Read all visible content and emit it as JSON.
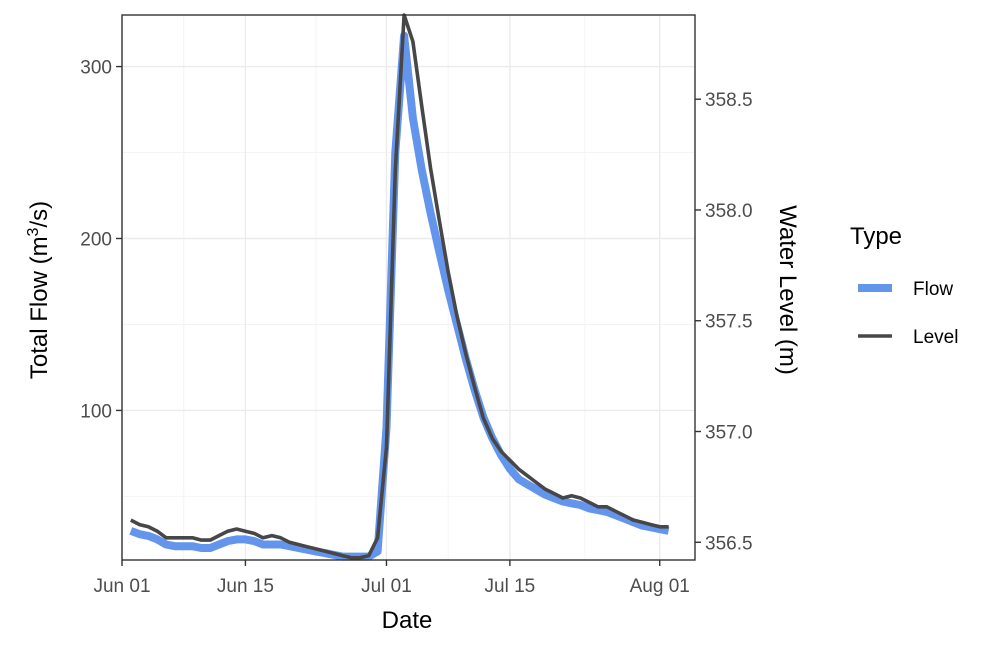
{
  "chart_data": {
    "type": "line",
    "xlabel": "Date",
    "ylabel_left": "Total Flow (m",
    "ylabel_left_sup": "3",
    "ylabel_left_tail": "/s)",
    "ylabel_right": "Water Level (m)",
    "grid": true,
    "legend": {
      "title": "Type",
      "placement": "right"
    },
    "x_ticks": [
      {
        "label": "Jun 01",
        "day": 0
      },
      {
        "label": "Jun 15",
        "day": 14
      },
      {
        "label": "Jul 01",
        "day": 30
      },
      {
        "label": "Jul 15",
        "day": 44
      },
      {
        "label": "Aug 01",
        "day": 61
      }
    ],
    "y_left_ticks": [
      100,
      200,
      300
    ],
    "y_right_ticks": [
      "356.5",
      "357.0",
      "357.5",
      "358.0",
      "358.5"
    ],
    "x_range": [
      "2023-05-31",
      "2023-08-04"
    ],
    "ylim_left": [
      13,
      330
    ],
    "ylim_right": [
      356.42,
      358.88
    ],
    "series": [
      {
        "name": "Flow",
        "axis": "left",
        "color": "#6495ed",
        "points": [
          [
            "06-01",
            30
          ],
          [
            "06-02",
            28
          ],
          [
            "06-03",
            27
          ],
          [
            "06-04",
            25
          ],
          [
            "06-05",
            22
          ],
          [
            "06-06",
            21
          ],
          [
            "06-07",
            21
          ],
          [
            "06-08",
            21
          ],
          [
            "06-09",
            20
          ],
          [
            "06-10",
            20
          ],
          [
            "06-11",
            22
          ],
          [
            "06-12",
            24
          ],
          [
            "06-13",
            25
          ],
          [
            "06-14",
            25
          ],
          [
            "06-15",
            24
          ],
          [
            "06-16",
            22
          ],
          [
            "06-17",
            22
          ],
          [
            "06-18",
            22
          ],
          [
            "06-19",
            21
          ],
          [
            "06-20",
            20
          ],
          [
            "06-21",
            19
          ],
          [
            "06-22",
            18
          ],
          [
            "06-23",
            17
          ],
          [
            "06-24",
            16
          ],
          [
            "06-25",
            15
          ],
          [
            "06-26",
            15
          ],
          [
            "06-27",
            15
          ],
          [
            "06-28",
            15
          ],
          [
            "06-29",
            18
          ],
          [
            "06-30",
            90
          ],
          [
            "07-01",
            250
          ],
          [
            "07-02",
            318
          ],
          [
            "07-03",
            270
          ],
          [
            "07-04",
            240
          ],
          [
            "07-05",
            215
          ],
          [
            "07-06",
            192
          ],
          [
            "07-07",
            170
          ],
          [
            "07-08",
            150
          ],
          [
            "07-09",
            130
          ],
          [
            "07-10",
            112
          ],
          [
            "07-11",
            96
          ],
          [
            "07-12",
            84
          ],
          [
            "07-13",
            74
          ],
          [
            "07-14",
            66
          ],
          [
            "07-15",
            60
          ],
          [
            "07-16",
            57
          ],
          [
            "07-17",
            54
          ],
          [
            "07-18",
            51
          ],
          [
            "07-19",
            49
          ],
          [
            "07-20",
            47
          ],
          [
            "07-21",
            46
          ],
          [
            "07-22",
            45
          ],
          [
            "07-23",
            43
          ],
          [
            "07-24",
            42
          ],
          [
            "07-25",
            41
          ],
          [
            "07-26",
            39
          ],
          [
            "07-27",
            37
          ],
          [
            "07-28",
            35
          ],
          [
            "07-29",
            33
          ],
          [
            "07-30",
            32
          ],
          [
            "07-31",
            31
          ],
          [
            "08-01",
            30
          ]
        ]
      },
      {
        "name": "Level",
        "axis": "right",
        "color": "#474747",
        "points": [
          [
            "06-01",
            356.6
          ],
          [
            "06-02",
            356.58
          ],
          [
            "06-03",
            356.57
          ],
          [
            "06-04",
            356.55
          ],
          [
            "06-05",
            356.52
          ],
          [
            "06-06",
            356.52
          ],
          [
            "06-07",
            356.52
          ],
          [
            "06-08",
            356.52
          ],
          [
            "06-09",
            356.51
          ],
          [
            "06-10",
            356.51
          ],
          [
            "06-11",
            356.53
          ],
          [
            "06-12",
            356.55
          ],
          [
            "06-13",
            356.56
          ],
          [
            "06-14",
            356.55
          ],
          [
            "06-15",
            356.54
          ],
          [
            "06-16",
            356.52
          ],
          [
            "06-17",
            356.53
          ],
          [
            "06-18",
            356.52
          ],
          [
            "06-19",
            356.5
          ],
          [
            "06-20",
            356.49
          ],
          [
            "06-21",
            356.48
          ],
          [
            "06-22",
            356.47
          ],
          [
            "06-23",
            356.46
          ],
          [
            "06-24",
            356.45
          ],
          [
            "06-25",
            356.44
          ],
          [
            "06-26",
            356.43
          ],
          [
            "06-27",
            356.43
          ],
          [
            "06-28",
            356.44
          ],
          [
            "06-29",
            356.52
          ],
          [
            "06-30",
            356.93
          ],
          [
            "07-01",
            358.18
          ],
          [
            "07-02",
            358.88
          ],
          [
            "07-03",
            358.76
          ],
          [
            "07-04",
            358.47
          ],
          [
            "07-05",
            358.19
          ],
          [
            "07-06",
            357.95
          ],
          [
            "07-07",
            357.72
          ],
          [
            "07-08",
            357.52
          ],
          [
            "07-09",
            357.35
          ],
          [
            "07-10",
            357.2
          ],
          [
            "07-11",
            357.06
          ],
          [
            "07-12",
            356.97
          ],
          [
            "07-13",
            356.91
          ],
          [
            "07-14",
            356.87
          ],
          [
            "07-15",
            356.83
          ],
          [
            "07-16",
            356.8
          ],
          [
            "07-17",
            356.77
          ],
          [
            "07-18",
            356.74
          ],
          [
            "07-19",
            356.72
          ],
          [
            "07-20",
            356.7
          ],
          [
            "07-21",
            356.71
          ],
          [
            "07-22",
            356.7
          ],
          [
            "07-23",
            356.68
          ],
          [
            "07-24",
            356.66
          ],
          [
            "07-25",
            356.66
          ],
          [
            "07-26",
            356.64
          ],
          [
            "07-27",
            356.62
          ],
          [
            "07-28",
            356.6
          ],
          [
            "07-29",
            356.59
          ],
          [
            "07-30",
            356.58
          ],
          [
            "07-31",
            356.57
          ],
          [
            "08-01",
            356.57
          ]
        ]
      }
    ]
  }
}
